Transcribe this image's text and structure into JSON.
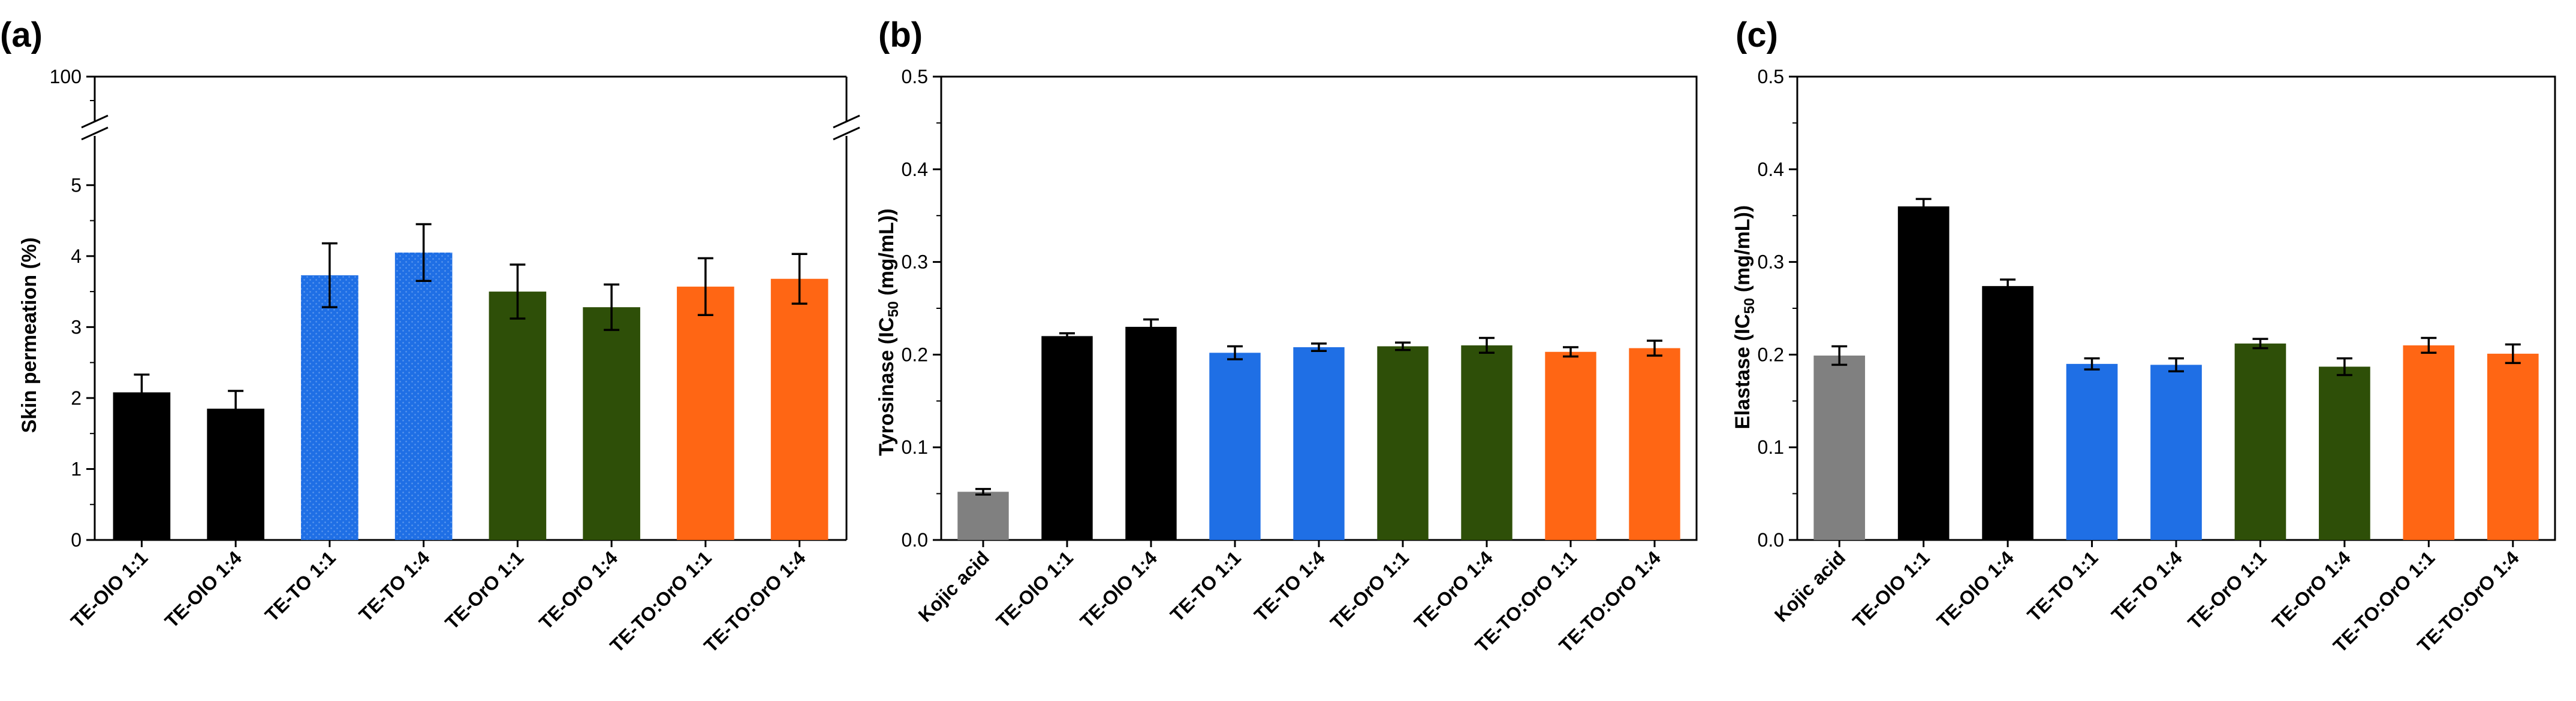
{
  "palette": {
    "gray": "#808080",
    "black": "#000000",
    "blue": "#1F6FE5",
    "green": "#2E4F08",
    "orange": "#FF6614"
  },
  "chart_data": [
    {
      "panel": "(a)",
      "type": "bar",
      "categories": [
        "TE-OlO 1:1",
        "TE-OlO 1:4",
        "TE-TO 1:1",
        "TE-TO 1:4",
        "TE-OrO 1:1",
        "TE-OrO 1:4",
        "TE-TO:OrO 1:1",
        "TE-TO:OrO 1:4"
      ],
      "values": [
        2.08,
        1.85,
        3.73,
        4.05,
        3.5,
        3.28,
        3.57,
        3.68
      ],
      "errors": [
        0.25,
        0.25,
        0.45,
        0.4,
        0.38,
        0.32,
        0.4,
        0.35
      ],
      "colors": [
        "black",
        "black",
        "blue",
        "blue",
        "green",
        "green",
        "orange",
        "orange"
      ],
      "patterned": [
        false,
        false,
        true,
        true,
        false,
        false,
        false,
        false
      ],
      "ylabel": "Skin permeation (%)",
      "ylim": [
        0,
        5.5
      ],
      "yticks": [
        "0",
        "1",
        "2",
        "3",
        "4",
        "5"
      ],
      "axis_break": true,
      "upper_tick": "100"
    },
    {
      "panel": "(b)",
      "type": "bar",
      "categories": [
        "Kojic acid",
        "TE-OlO 1:1",
        "TE-OlO 1:4",
        "TE-TO 1:1",
        "TE-TO 1:4",
        "TE-OrO 1:1",
        "TE-OrO 1:4",
        "TE-TO:OrO 1:1",
        "TE-TO:OrO 1:4"
      ],
      "values": [
        0.052,
        0.22,
        0.23,
        0.202,
        0.208,
        0.209,
        0.21,
        0.203,
        0.207
      ],
      "errors": [
        0.003,
        0.003,
        0.008,
        0.007,
        0.004,
        0.004,
        0.008,
        0.005,
        0.008
      ],
      "colors": [
        "gray",
        "black",
        "black",
        "blue",
        "blue",
        "green",
        "green",
        "orange",
        "orange"
      ],
      "ylabel_main": "Tyrosinase (IC",
      "ylabel_sub": "50",
      "ylabel_tail": " (mg/mL))",
      "ylim": [
        0,
        0.5
      ],
      "yticks": [
        "0.0",
        "0.1",
        "0.2",
        "0.3",
        "0.4",
        "0.5"
      ]
    },
    {
      "panel": "(c)",
      "type": "bar",
      "categories": [
        "Kojic acid",
        "TE-OlO 1:1",
        "TE-OlO 1:4",
        "TE-TO 1:1",
        "TE-TO 1:4",
        "TE-OrO 1:1",
        "TE-OrO 1:4",
        "TE-TO:OrO 1:1",
        "TE-TO:OrO 1:4"
      ],
      "values": [
        0.199,
        0.36,
        0.274,
        0.19,
        0.189,
        0.212,
        0.187,
        0.21,
        0.201
      ],
      "errors": [
        0.01,
        0.008,
        0.007,
        0.006,
        0.007,
        0.005,
        0.009,
        0.008,
        0.01
      ],
      "colors": [
        "gray",
        "black",
        "black",
        "blue",
        "blue",
        "green",
        "green",
        "orange",
        "orange"
      ],
      "ylabel_main": "Elastase (IC",
      "ylabel_sub": "50",
      "ylabel_tail": " (mg/mL))",
      "ylim": [
        0,
        0.5
      ],
      "yticks": [
        "0.0",
        "0.1",
        "0.2",
        "0.3",
        "0.4",
        "0.5"
      ]
    }
  ]
}
